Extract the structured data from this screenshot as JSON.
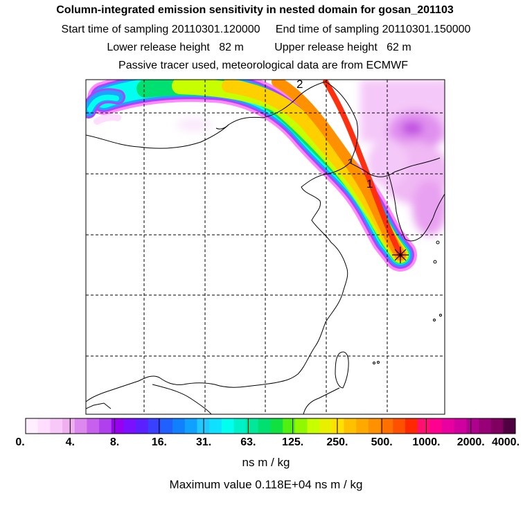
{
  "header": {
    "title": "Column-integrated emission sensitivity in nested domain for gosan_201103",
    "sampling": "Start time of sampling 20110301.120000     End time of sampling 20110301.150000",
    "release": "Lower release height   82 m          Upper release height   62 m",
    "tracer": "Passive tracer used, meteorological data are from ECMWF"
  },
  "map": {
    "labels": [
      "2",
      "1"
    ],
    "receptor_marker": "star-marker"
  },
  "colorbar": {
    "tick_labels": [
      "0.",
      "4.",
      "8.",
      "16.",
      "31.",
      "63.",
      "125.",
      "250.",
      "500.",
      "1000.",
      "2000.",
      "4000."
    ],
    "colors": [
      "#ffeeff",
      "#ffddff",
      "#f8c8f8",
      "#f0b0f0",
      "#dd88ee",
      "#c860ee",
      "#b040ee",
      "#9800f0",
      "#7a10ff",
      "#5a20ff",
      "#3a40ff",
      "#2060ff",
      "#1080ff",
      "#10a0ff",
      "#20c8ff",
      "#10e0ff",
      "#00ffee",
      "#00f0c8",
      "#00e898",
      "#00e070",
      "#10e040",
      "#50f010",
      "#90f800",
      "#c8ff00",
      "#e8f000",
      "#ffe000",
      "#ffc000",
      "#ffa800",
      "#ff9000",
      "#ff7000",
      "#ff5000",
      "#ff2800",
      "#ff1070",
      "#ff0090",
      "#e800a0",
      "#d000a0",
      "#b00090",
      "#980078",
      "#800060",
      "#500040"
    ],
    "units": "ns m / kg",
    "max_value": "Maximum value  0.118E+04 ns m / kg"
  },
  "colors": {
    "grid": "#000000",
    "coast": "#000000",
    "plume_core": "#ff3010",
    "plume_edge": "#00e0ff",
    "background_signal": "#ee88ee"
  }
}
